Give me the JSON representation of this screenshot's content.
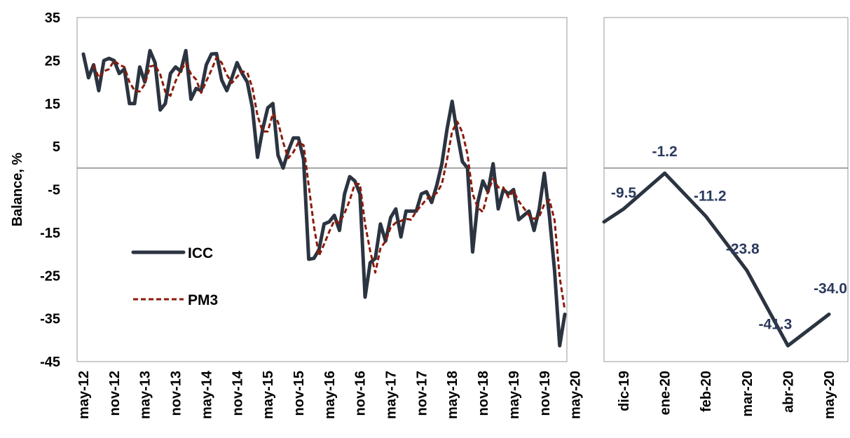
{
  "chart_data": [
    {
      "type": "line",
      "ylabel": "Balance, %",
      "ylim": [
        -45,
        35
      ],
      "yticks": [
        "35",
        "25",
        "15",
        "5",
        "-5",
        "-15",
        "-25",
        "-35",
        "-45"
      ],
      "x_tick_labels": [
        "may-12",
        "nov-12",
        "may-13",
        "nov-13",
        "may-14",
        "nov-14",
        "may-15",
        "nov-15",
        "may-16",
        "nov-16",
        "may-17",
        "nov-17",
        "may-18",
        "nov-18",
        "may-19",
        "nov-19",
        "may-20"
      ],
      "x_start": "may-12",
      "x_end": "may-20",
      "reference_line_y": 0,
      "legend_placement": "middle-left",
      "series": [
        {
          "name": "ICC",
          "color": "#2b3440",
          "style": "solid",
          "values": [
            26.5,
            21,
            24,
            18,
            25,
            25.5,
            25,
            22,
            23,
            15,
            15,
            23.5,
            20,
            27.3,
            24.5,
            13.5,
            15,
            22,
            23.5,
            22.5,
            27.3,
            16,
            18.5,
            18,
            24,
            26.5,
            26.6,
            20.5,
            18,
            21,
            24.5,
            22,
            20,
            14,
            2.5,
            9,
            14,
            15,
            3,
            0,
            4,
            7,
            7,
            2,
            -21.2,
            -21,
            -19,
            -13,
            -12.5,
            -11,
            -14.5,
            -6,
            -2,
            -3,
            -6,
            -30,
            -22,
            -21,
            -13,
            -17,
            -11.5,
            -9.5,
            -16,
            -10,
            -10,
            -10,
            -6,
            -5.5,
            -8,
            -4,
            1,
            9,
            15.5,
            8,
            1.5,
            0,
            -19.5,
            -8,
            -3,
            -5.5,
            1,
            -9.5,
            -5,
            -6,
            -5,
            -12,
            -11,
            -10,
            -14.5,
            -9.5,
            -1.2,
            -11.2,
            -23.8,
            -41.3,
            -34
          ]
        },
        {
          "name": "PM3",
          "color": "#8b1a0a",
          "style": "dashed",
          "values": [
            null,
            null,
            24,
            21,
            22.5,
            23,
            25,
            24,
            23.5,
            20,
            18,
            17.8,
            19.5,
            23.6,
            23.9,
            21.8,
            17.7,
            16.8,
            20.2,
            22.7,
            24.4,
            21.9,
            20.6,
            17.5,
            20.2,
            22.8,
            25.7,
            24.5,
            21.7,
            19.8,
            21.2,
            22.5,
            22.2,
            18.7,
            12.2,
            8.5,
            8.5,
            12.7,
            10.7,
            6,
            2.3,
            3.7,
            6,
            5.3,
            -4.1,
            -13.4,
            -20.4,
            -17.7,
            -14.8,
            -12.2,
            -12.7,
            -10.5,
            -7.5,
            -3.7,
            -3.7,
            -13,
            -19.3,
            -24.3,
            -18.7,
            -17,
            -13.8,
            -12.7,
            -12.3,
            -11.8,
            -12,
            -10,
            -8.7,
            -7.2,
            -6.5,
            -5.8,
            -3.7,
            2,
            8.5,
            10.8,
            8.3,
            3.2,
            -6,
            -9.2,
            -10.2,
            -5.5,
            -2.5,
            -4.5,
            -4.5,
            -6.8,
            -5.3,
            -7.7,
            -9.3,
            -11,
            -11.8,
            -11.3,
            -8.4,
            -7.4,
            -12.1,
            -25.4,
            -33
          ]
        }
      ]
    },
    {
      "type": "line",
      "ylim": [
        -45,
        35
      ],
      "categories": [
        "dic-19",
        "ene-20",
        "feb-20",
        "mar-20",
        "abr-20",
        "may-20"
      ],
      "reference_line_y": 0,
      "series": [
        {
          "name": "ICC",
          "color": "#2b3440",
          "style": "solid",
          "start_value": -12.5,
          "values": [
            -9.5,
            -1.2,
            -11.2,
            -23.8,
            -41.3,
            -34.0
          ],
          "data_labels": [
            "-9.5",
            "-1.2",
            "-11.2",
            "-23.8",
            "-41.3",
            "-34.0"
          ],
          "label_color": "#2b3a5c"
        }
      ]
    }
  ]
}
